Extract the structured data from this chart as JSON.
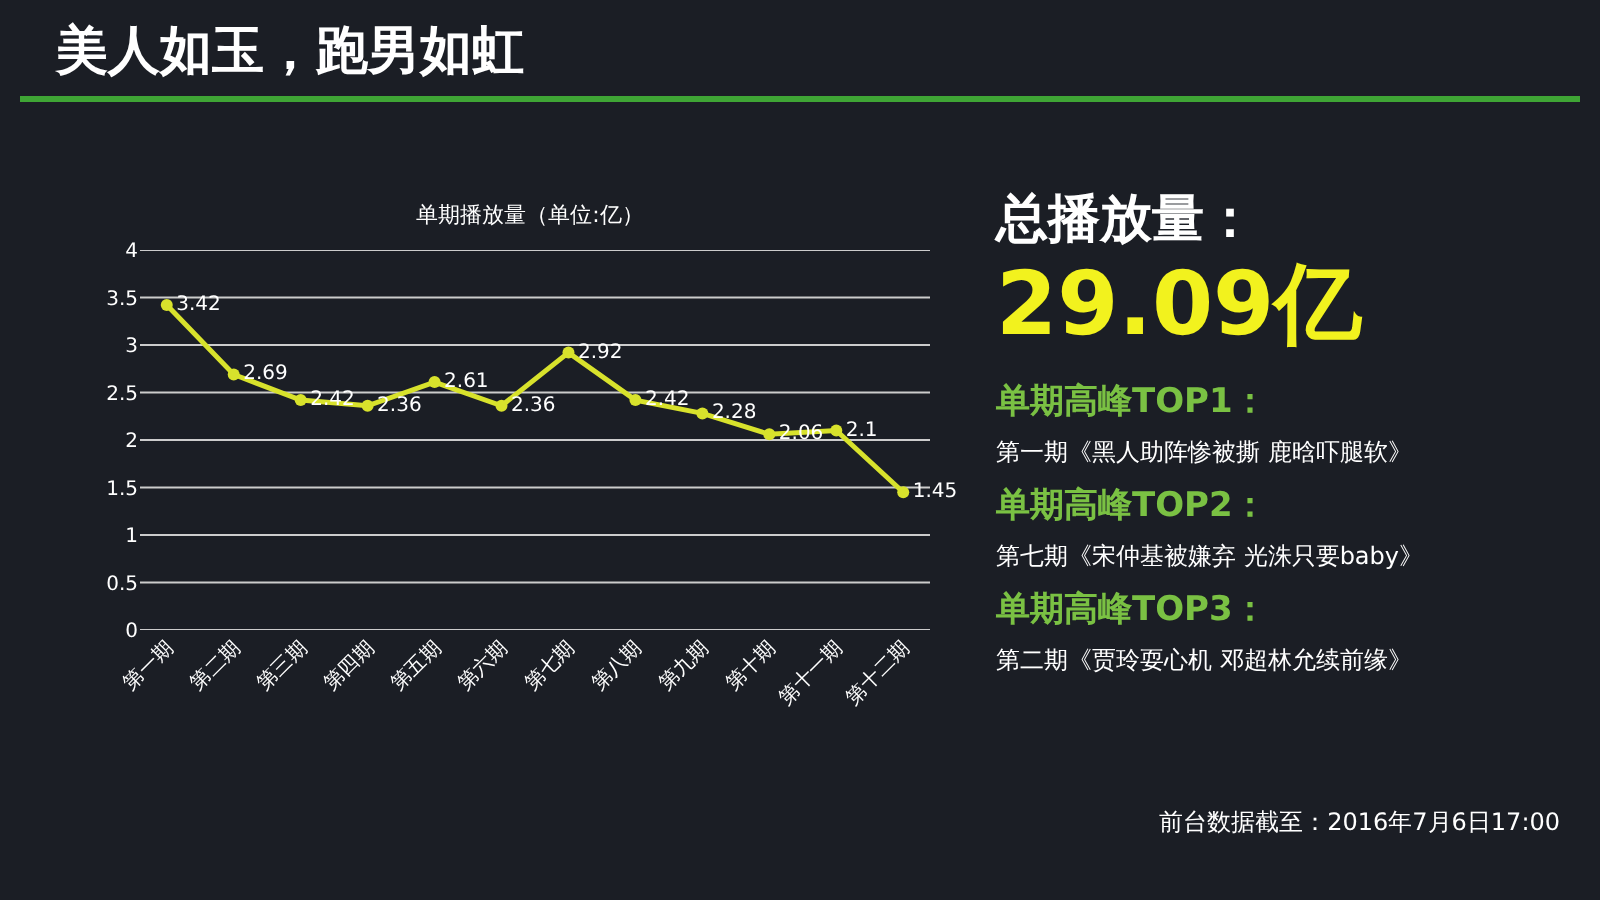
{
  "chart_data": {
    "type": "line",
    "title": "美人如玉，跑男如虹",
    "subtitle": "单期播放量（单位:亿）",
    "categories": [
      "第一期",
      "第二期",
      "第三期",
      "第四期",
      "第五期",
      "第六期",
      "第七期",
      "第八期",
      "第九期",
      "第十期",
      "第十一期",
      "第十二期"
    ],
    "series": [
      {
        "color": "#d8e22c",
        "values": [
          3.42,
          2.69,
          2.42,
          2.36,
          2.61,
          2.36,
          2.92,
          2.42,
          2.28,
          2.06,
          2.1,
          1.45
        ]
      }
    ],
    "ylim": [
      0,
      4
    ],
    "yticks": [
      0,
      0.5,
      1,
      1.5,
      2,
      2.5,
      3,
      3.5,
      4
    ],
    "grid": "y",
    "marker": "circle",
    "line_style": "solid",
    "data_labels": true,
    "legend": false,
    "annotations": [
      "总播放量：",
      "29.09亿",
      "单期高峰TOP1：",
      "第一期《黑人助阵惨被撕 鹿晗吓腿软》",
      "单期高峰TOP2：",
      "第七期《宋仲基被嫌弃 光洙只要baby》",
      "单期高峰TOP3：",
      "第二期《贾玲耍心机 邓超林允续前缘》",
      "前台数据截至：2016年7月6日17:00"
    ]
  }
}
